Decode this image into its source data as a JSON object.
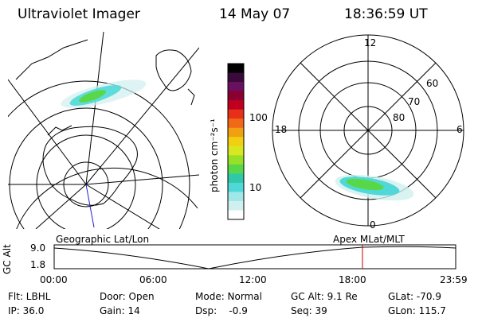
{
  "header": {
    "instrument": "Ultraviolet Imager",
    "date": "14 May 07",
    "time": "18:36:59 UT"
  },
  "colorbar": {
    "unit_label": "photon cm⁻²s⁻¹",
    "ticks": [
      "100",
      "10"
    ],
    "colors_top_to_bottom": [
      "#000000",
      "#3a0a3a",
      "#6a1060",
      "#8a0030",
      "#c00020",
      "#e83018",
      "#f06818",
      "#f0a010",
      "#f0d010",
      "#d8e820",
      "#98e028",
      "#58d848",
      "#30c8a8",
      "#50d8d8",
      "#a0e8e8",
      "#d0f0f0",
      "#ffffff"
    ]
  },
  "polar_plot": {
    "mlt_labels": {
      "top": "12",
      "left": "18",
      "right": "6",
      "bottom": "0"
    },
    "mlat_labels": [
      "60",
      "70",
      "80"
    ]
  },
  "timeline": {
    "axis_label": "GC Alt",
    "y_ticks": [
      "9.0",
      "1.8"
    ],
    "left_caption": "Geographic Lat/Lon",
    "right_caption": "Apex MLat/MLT",
    "x_ticks": [
      "00:00",
      "06:00",
      "12:00",
      "18:00",
      "23:59"
    ],
    "marker_color": "#c00000"
  },
  "info": {
    "flt": "Flt: LBHL",
    "ip": "IP: 36.0",
    "door": "Door: Open",
    "gain": "Gain: 14",
    "mode": "Mode: Normal",
    "dsp": "Dsp:    -0.9",
    "gc_alt": "GC Alt: 9.1 Re",
    "seq": "Seq: 39",
    "glat": "GLat: -70.9",
    "glon": "GLon: 115.7"
  }
}
